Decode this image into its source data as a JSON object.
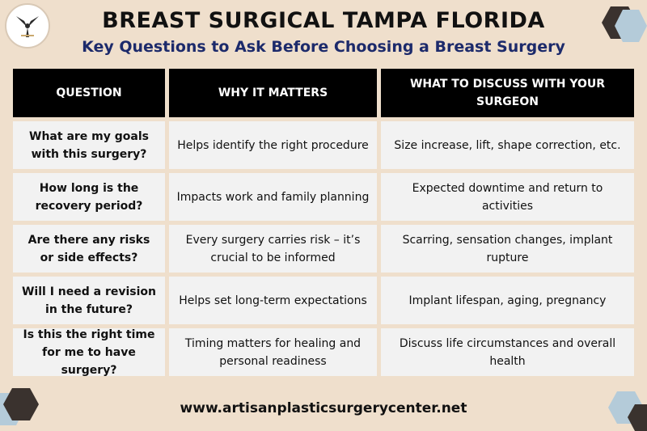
{
  "header": {
    "title": "BREAST SURGICAL TAMPA FLORIDA",
    "subtitle": "Key Questions to Ask Before Choosing a Breast Surgery"
  },
  "logo": {
    "icon": "bird-icon"
  },
  "table": {
    "columns": [
      "QUESTION",
      "WHY IT MATTERS",
      "WHAT TO DISCUSS WITH YOUR SURGEON"
    ],
    "rows": [
      {
        "question": "What are my goals with this surgery?",
        "why": "Helps identify the right procedure",
        "discuss": "Size increase, lift, shape correction, etc."
      },
      {
        "question": "How long is the recovery period?",
        "why": "Impacts work and family planning",
        "discuss": "Expected downtime and return to activities"
      },
      {
        "question": "Are there any risks or side effects?",
        "why": "Every surgery carries risk – it’s crucial to be informed",
        "discuss": "Scarring, sensation changes, implant rupture"
      },
      {
        "question": "Will I need a revision in the future?",
        "why": "Helps set long-term expectations",
        "discuss": "Implant lifespan, aging, pregnancy"
      },
      {
        "question": "Is this the right time for me to have surgery?",
        "why": "Timing matters for healing and personal readiness",
        "discuss": "Discuss life circumstances and overall health"
      }
    ]
  },
  "footer": {
    "website": "www.artisanplasticsurgerycenter.net"
  },
  "colors": {
    "background": "#efdfcc",
    "header_fill": "#000000",
    "cell_fill": "#f2f2f2",
    "subtitle": "#1c2a6b",
    "hex_dark": "#3a322e",
    "hex_light": "#b4cbd9"
  }
}
